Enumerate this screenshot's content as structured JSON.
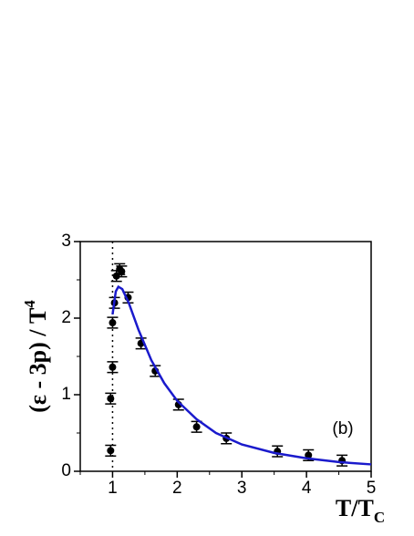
{
  "chart_data": {
    "type": "scatter",
    "x_label": {
      "base": "T/T",
      "subscript": "C"
    },
    "y_label": {
      "base": "(ε - 3p) / T",
      "superscript": "4"
    },
    "annotation": "(b)",
    "xlim": [
      0.5,
      5
    ],
    "ylim": [
      0,
      3
    ],
    "xticks": [
      1,
      2,
      3,
      4,
      5
    ],
    "yticks": [
      0,
      1,
      2,
      3
    ],
    "reference_x": 1,
    "series": [
      {
        "type": "scatter",
        "color": "#000000",
        "x": [
          0.97,
          0.97,
          1.0,
          1.0,
          1.03,
          1.06,
          1.11,
          1.14,
          1.24,
          1.44,
          1.66,
          2.02,
          2.3,
          2.76,
          3.55,
          4.03,
          4.55
        ],
        "values": [
          0.27,
          0.95,
          1.36,
          1.94,
          2.2,
          2.55,
          2.64,
          2.61,
          2.27,
          1.67,
          1.31,
          0.87,
          0.58,
          0.43,
          0.26,
          0.21,
          0.14
        ],
        "errors": [
          0.07,
          0.07,
          0.07,
          0.07,
          0.07,
          0.07,
          0.07,
          0.07,
          0.07,
          0.07,
          0.07,
          0.07,
          0.07,
          0.07,
          0.07,
          0.07,
          0.07
        ]
      },
      {
        "type": "line",
        "color": "#1a1acc",
        "x": [
          1.0,
          1.05,
          1.09,
          1.15,
          1.25,
          1.4,
          1.6,
          1.8,
          2.0,
          2.3,
          2.6,
          3.0,
          3.5,
          4.0,
          4.5,
          5.0
        ],
        "values": [
          2.05,
          2.35,
          2.41,
          2.38,
          2.2,
          1.85,
          1.45,
          1.15,
          0.92,
          0.68,
          0.5,
          0.35,
          0.24,
          0.17,
          0.12,
          0.09
        ]
      }
    ]
  }
}
